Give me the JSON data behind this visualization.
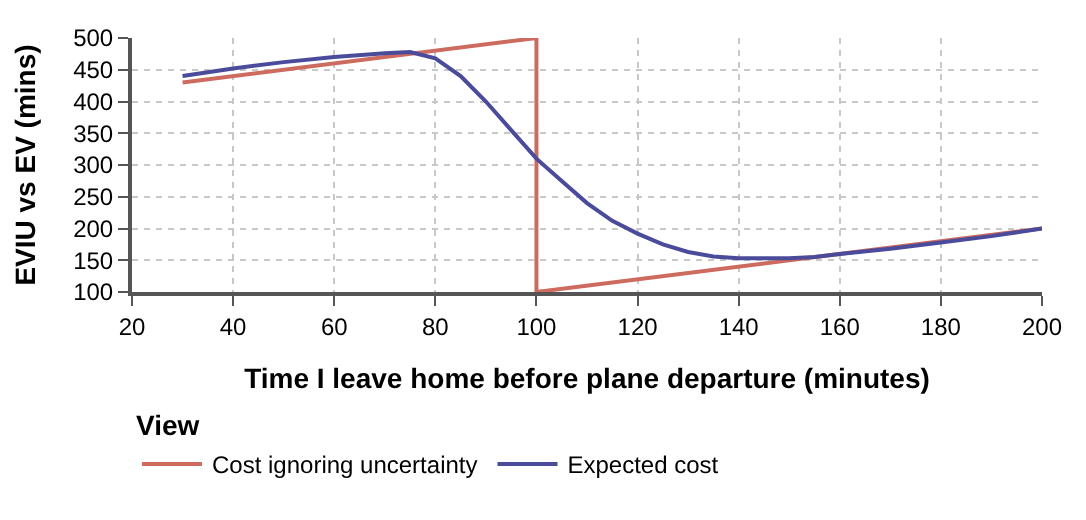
{
  "chart_data": {
    "type": "line",
    "xlabel": "Time I leave home before plane departure (minutes)",
    "ylabel": "EVIU vs EV (mins)",
    "legend_title": "View",
    "series": [
      {
        "name": "Cost ignoring uncertainty",
        "color": "#cc6b5e",
        "x": [
          30,
          100,
          100,
          200
        ],
        "values": [
          430,
          500,
          100,
          200
        ]
      },
      {
        "name": "Expected cost",
        "color": "#4b4b9c",
        "x": [
          30,
          40,
          50,
          60,
          70,
          75,
          80,
          85,
          90,
          95,
          100,
          105,
          110,
          115,
          120,
          125,
          130,
          135,
          140,
          145,
          150,
          155,
          160,
          170,
          180,
          190,
          200
        ],
        "values": [
          440,
          452,
          462,
          470,
          476,
          478,
          468,
          440,
          400,
          355,
          310,
          275,
          240,
          212,
          192,
          175,
          163,
          156,
          153,
          153,
          153,
          155,
          160,
          168,
          178,
          188,
          200
        ]
      }
    ],
    "xlim": [
      20,
      200
    ],
    "xticks": [
      20,
      40,
      60,
      80,
      100,
      120,
      140,
      160,
      180,
      200
    ],
    "ylim": [
      100,
      500
    ],
    "yticks": [
      100,
      150,
      200,
      250,
      300,
      350,
      400,
      450,
      500
    ],
    "grid": true,
    "legend": "bottom",
    "marker": "none",
    "line_style": "solid"
  }
}
